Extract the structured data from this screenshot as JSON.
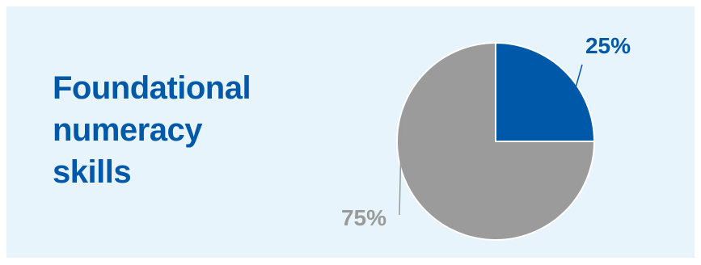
{
  "colors": {
    "background": "#e7f4fb",
    "accent_blue": "#0059a8",
    "slice_gray": "#9b9b9b",
    "label_gray": "#9a9a9a"
  },
  "title_lines": [
    "Foundational",
    "numeracy",
    "skills"
  ],
  "chart_data": {
    "type": "pie",
    "slices": [
      {
        "label": "25%",
        "value": 25,
        "color": "#0059a8"
      },
      {
        "label": "75%",
        "value": 75,
        "color": "#9b9b9b"
      }
    ],
    "start_angle_deg": 0,
    "direction": "clockwise",
    "legend": "none"
  }
}
